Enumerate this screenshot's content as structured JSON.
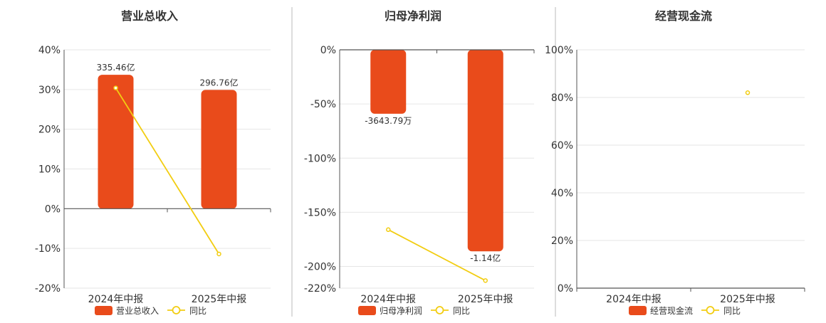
{
  "colors": {
    "bar": "#e94b1b",
    "line": "#f2cd12",
    "axis": "#555555",
    "grid": "#e6e6e6",
    "divider": "#bbbbbb",
    "text": "#333333"
  },
  "legend": {
    "line_label": "同比"
  },
  "chart_data": [
    {
      "type": "bar",
      "title": "营业总收入",
      "categories": [
        "2024年中报",
        "2025年中报"
      ],
      "y_ticks": [
        "40%",
        "30%",
        "20%",
        "10%",
        "0%",
        "-10%",
        "-20%"
      ],
      "ylim": [
        -20,
        40
      ],
      "series": [
        {
          "name": "营业总收入",
          "kind": "bar",
          "values": [
            33.7,
            29.9
          ],
          "labels": [
            "335.46亿",
            "296.76亿"
          ]
        },
        {
          "name": "同比",
          "kind": "line",
          "values": [
            30.4,
            -11.4
          ]
        }
      ],
      "legend_position": "bottom",
      "grid": true
    },
    {
      "type": "bar",
      "title": "归母净利润",
      "categories": [
        "2024年中报",
        "2025年中报"
      ],
      "y_ticks": [
        "0%",
        "-50%",
        "-100%",
        "-150%",
        "-200%",
        "-220%"
      ],
      "ylim": [
        -220,
        0
      ],
      "series": [
        {
          "name": "归母净利润",
          "kind": "bar",
          "values": [
            -59,
            -186
          ],
          "labels": [
            "-3643.79万",
            "-1.14亿"
          ]
        },
        {
          "name": "同比",
          "kind": "line",
          "values": [
            -166,
            -213
          ]
        }
      ],
      "legend_position": "bottom",
      "grid": true
    },
    {
      "type": "bar",
      "title": "经营现金流",
      "categories": [
        "2024年中报",
        "2025年中报"
      ],
      "y_ticks": [
        "100%",
        "80%",
        "60%",
        "40%",
        "20%",
        "0%"
      ],
      "ylim": [
        0,
        100
      ],
      "series": [
        {
          "name": "经营现金流",
          "kind": "bar",
          "values": [
            null,
            null
          ],
          "labels": [
            "",
            ""
          ]
        },
        {
          "name": "同比",
          "kind": "line",
          "values": [
            null,
            82
          ]
        }
      ],
      "legend_position": "bottom",
      "grid": true
    }
  ]
}
